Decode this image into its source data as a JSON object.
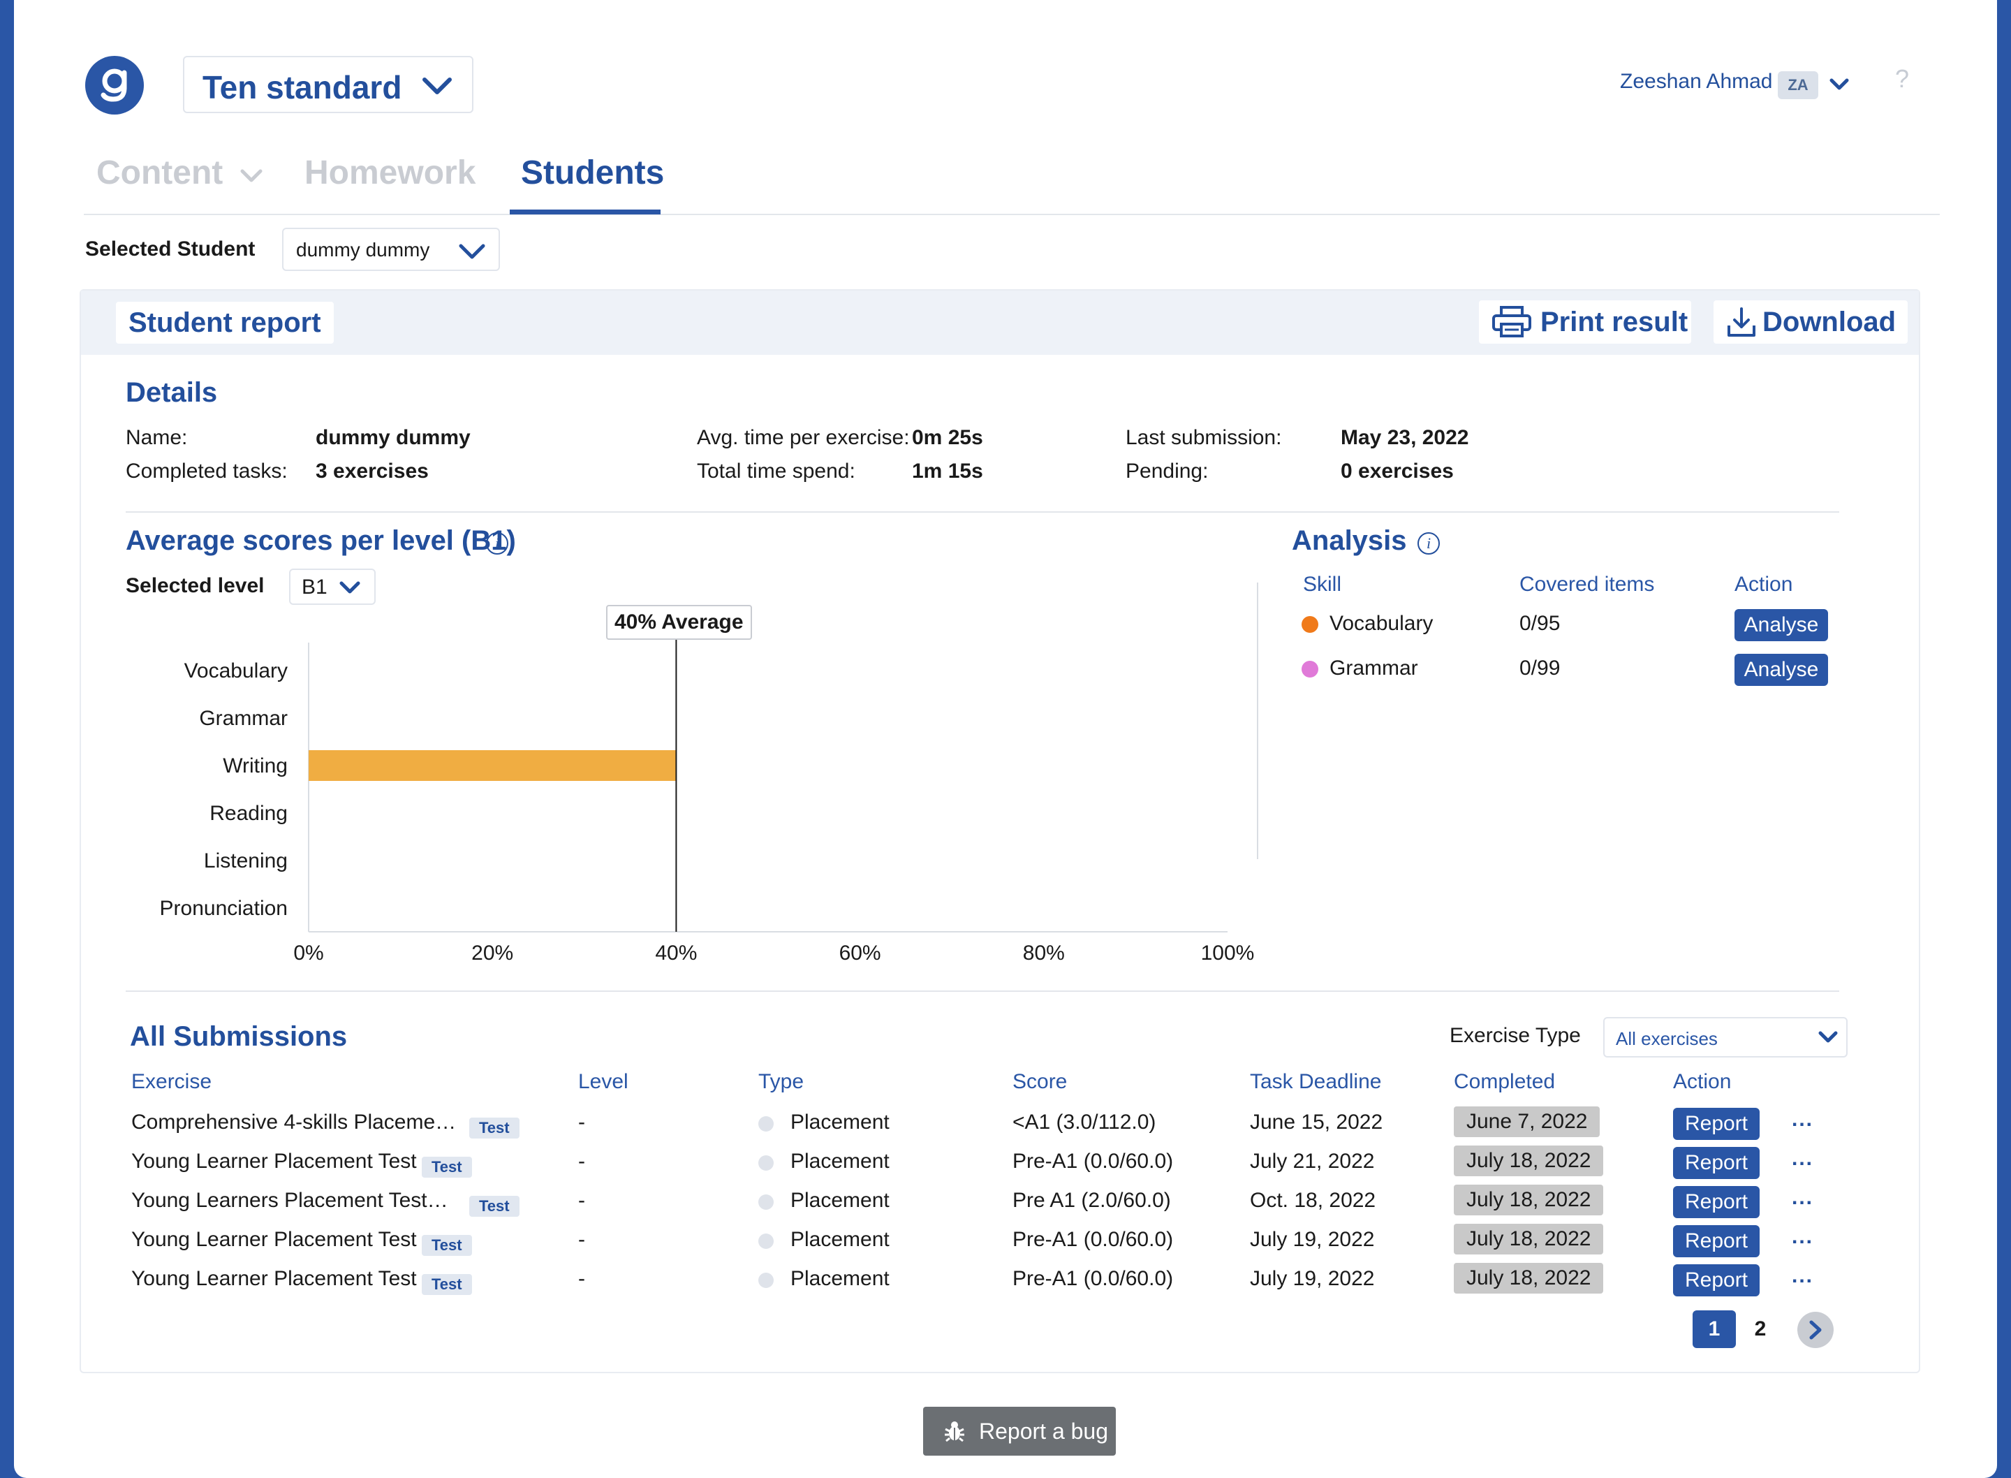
{
  "header": {
    "class_selector": "Ten standard",
    "user_name": "Zeeshan Ahmad",
    "user_initials": "ZA",
    "help": "?"
  },
  "tabs": [
    {
      "label": "Content",
      "active": false
    },
    {
      "label": "Homework",
      "active": false
    },
    {
      "label": "Students",
      "active": true
    }
  ],
  "student_selector": {
    "label": "Selected Student",
    "value": "dummy dummy"
  },
  "report": {
    "title": "Student report",
    "print_label": "Print result",
    "download_label": "Download"
  },
  "details": {
    "title": "Details",
    "name_label": "Name:",
    "name_value": "dummy dummy",
    "completed_label": "Completed tasks:",
    "completed_value": "3 exercises",
    "avg_label": "Avg. time per exercise:",
    "avg_value": "0m 25s",
    "total_label": "Total time spend:",
    "total_value": "1m 15s",
    "last_label": "Last submission:",
    "last_value": "May 23, 2022",
    "pending_label": "Pending:",
    "pending_value": "0 exercises"
  },
  "scores": {
    "title": "Average scores per level (B1)",
    "level_label": "Selected level",
    "level_value": "B1",
    "average_label": "40% Average"
  },
  "chart_data": {
    "type": "bar",
    "orientation": "horizontal",
    "categories": [
      "Vocabulary",
      "Grammar",
      "Writing",
      "Reading",
      "Listening",
      "Pronunciation"
    ],
    "values": [
      0,
      0,
      40,
      0,
      0,
      0
    ],
    "xlim": [
      0,
      100
    ],
    "x_ticks": [
      "0%",
      "20%",
      "40%",
      "60%",
      "80%",
      "100%"
    ],
    "reference_line": {
      "value": 40,
      "label": "40% Average"
    },
    "bar_color": "#f0ad42"
  },
  "analysis": {
    "title": "Analysis",
    "headers": {
      "skill": "Skill",
      "covered": "Covered items",
      "action": "Action"
    },
    "rows": [
      {
        "skill": "Vocabulary",
        "covered": "0/95",
        "action": "Analyse",
        "color": "#f07a1a"
      },
      {
        "skill": "Grammar",
        "covered": "0/99",
        "action": "Analyse",
        "color": "#e07ad8"
      }
    ]
  },
  "submissions": {
    "title": "All Submissions",
    "filter_label": "Exercise Type",
    "filter_value": "All exercises",
    "headers": {
      "exercise": "Exercise",
      "level": "Level",
      "type": "Type",
      "score": "Score",
      "deadline": "Task Deadline",
      "completed": "Completed",
      "action": "Action"
    },
    "rows": [
      {
        "exercise": "Comprehensive 4-skills Placeme…",
        "badge": "Test",
        "level": "-",
        "type": "Placement",
        "score": "<A1 (3.0/112.0)",
        "deadline": "June 15, 2022",
        "completed": "June 7, 2022",
        "action": "Report",
        "more": "..."
      },
      {
        "exercise": "Young Learner Placement Test",
        "badge": "Test",
        "level": "-",
        "type": "Placement",
        "score": "Pre-A1 (0.0/60.0)",
        "deadline": "July 21, 2022",
        "completed": "July 18, 2022",
        "action": "Report",
        "more": "..."
      },
      {
        "exercise": "Young Learners Placement Test…",
        "badge": "Test",
        "level": "-",
        "type": "Placement",
        "score": "Pre A1 (2.0/60.0)",
        "deadline": "Oct. 18, 2022",
        "completed": "July 18, 2022",
        "action": "Report",
        "more": "..."
      },
      {
        "exercise": "Young Learner Placement Test",
        "badge": "Test",
        "level": "-",
        "type": "Placement",
        "score": "Pre-A1 (0.0/60.0)",
        "deadline": "July 19, 2022",
        "completed": "July 18, 2022",
        "action": "Report",
        "more": "..."
      },
      {
        "exercise": "Young Learner Placement Test",
        "badge": "Test",
        "level": "-",
        "type": "Placement",
        "score": "Pre-A1 (0.0/60.0)",
        "deadline": "July 19, 2022",
        "completed": "July 18, 2022",
        "action": "Report",
        "more": "..."
      }
    ],
    "pagination": {
      "current": "1",
      "next_page": "2"
    }
  },
  "footer": {
    "report_bug": "Report a bug"
  },
  "colors": {
    "brand": "#2a56a6",
    "heading": "#234f9c",
    "bar": "#f0ad42"
  }
}
